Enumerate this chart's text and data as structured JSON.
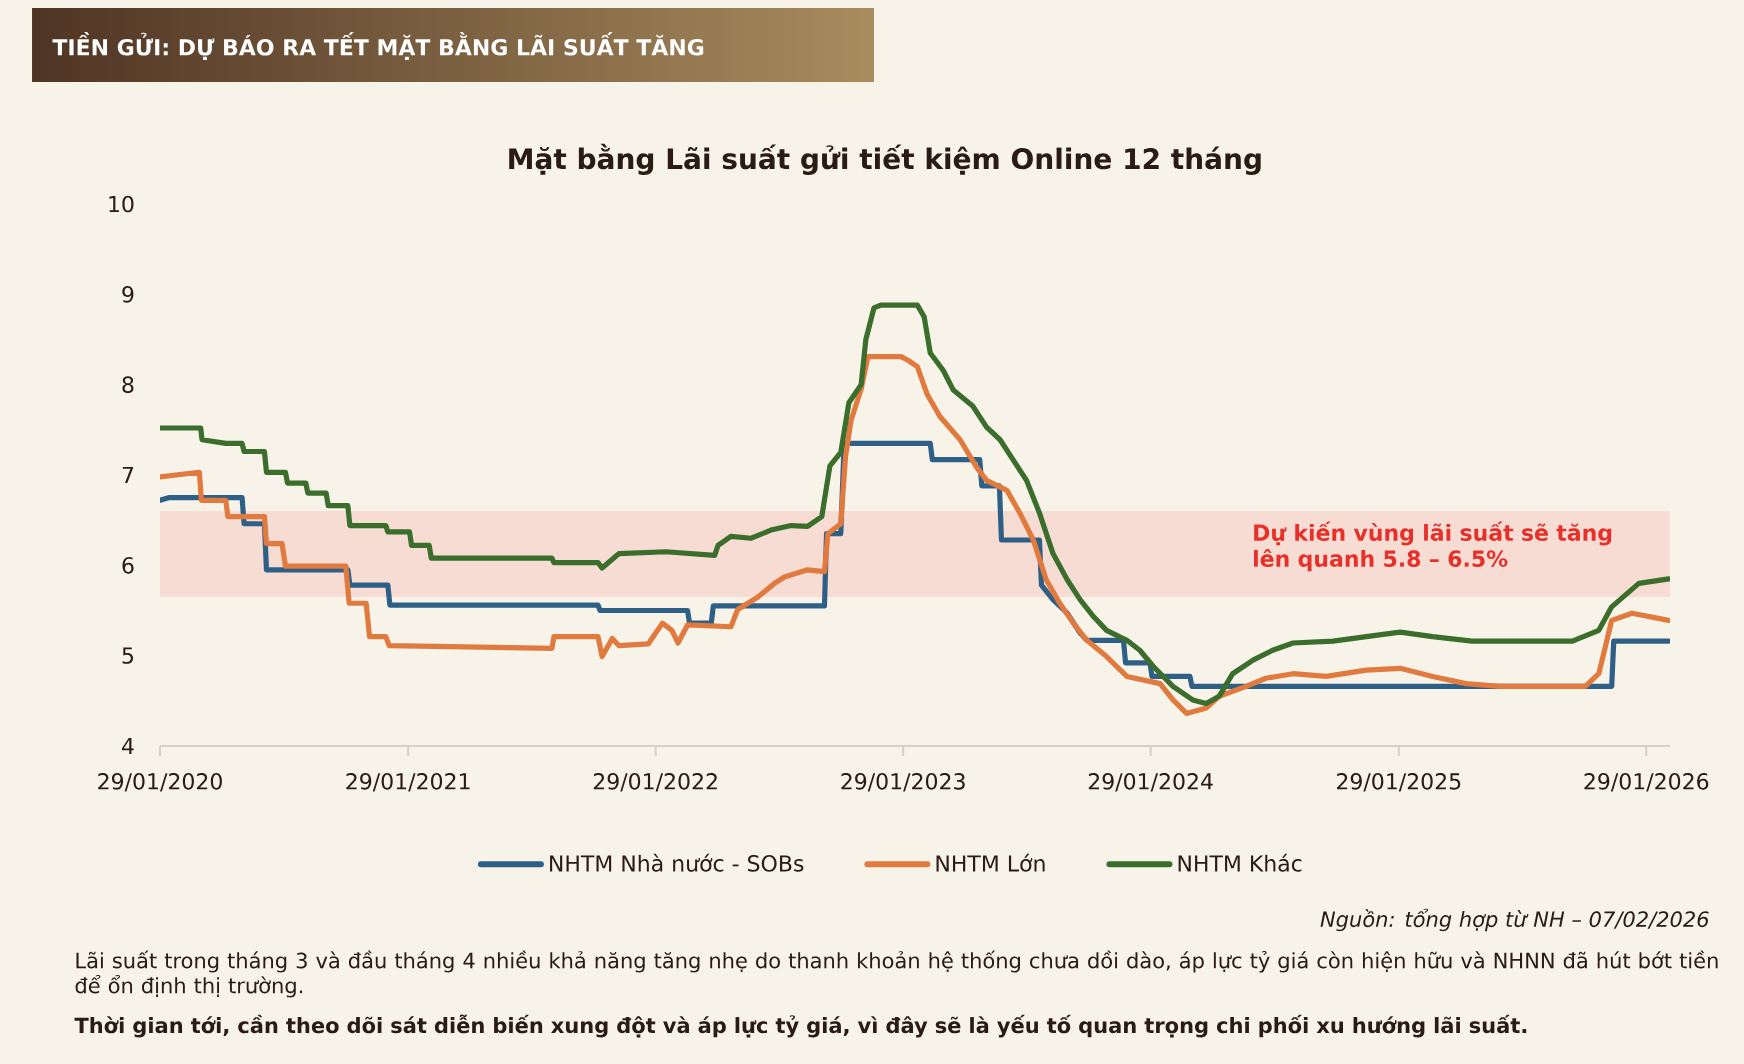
{
  "chart_data": {
    "type": "line",
    "title": "Mặt bằng Lãi suất gửi tiết kiệm Online 12 tháng",
    "annotations": [
      "TIỀN GỬI: DỰ BÁO RA TẾT MẶT BẰNG LÃI SUẤT TĂNG",
      "Nguồn: tổng hợp từ NH – 07/02/2026",
      "Lãi suất trong tháng 3 và đầu tháng 4 nhiều khả năng tăng nhẹ do thanh khoản hệ thống chưa dồi dào, áp lực tỷ giá còn hiện hữu và NHNN đã hút bớt tiền để ổn định thị trường.",
      "Thời gian tới, cần theo dõi sát diễn biến xung đột và áp lực tỷ giá, vì đây sẽ là yếu tố quan trọng chi phối xu hướng lãi suất."
    ],
    "xlim": [
      "2020-01-29",
      "2026-03-05"
    ],
    "xticks": [
      {
        "value": "2020-01-29",
        "label": "29/01/2020"
      },
      {
        "value": "2021-01-29",
        "label": "29/01/2021"
      },
      {
        "value": "2022-01-29",
        "label": "29/01/2022"
      },
      {
        "value": "2023-01-29",
        "label": "29/01/2023"
      },
      {
        "value": "2024-01-29",
        "label": "29/01/2024"
      },
      {
        "value": "2025-01-29",
        "label": "29/01/2025"
      },
      {
        "value": "2026-01-29",
        "label": "29/01/2026"
      }
    ],
    "ylim": [
      4,
      10
    ],
    "yticks": [
      4,
      5,
      6,
      7,
      8,
      9,
      10
    ],
    "bands": [
      {
        "axis": "y",
        "from": 5.65,
        "to": 6.6,
        "label": "Dự kiến vùng lãi suất sẽ tăng lên quanh 5.8 – 6.5%",
        "color": "#f7dcd3"
      }
    ],
    "legend": "bottom",
    "series": [
      {
        "name": "NHTM Nhà nước - SOBs",
        "color": "#2e5f87",
        "x": [
          "2020-01-29",
          "2020-02-12",
          "2020-05-29",
          "2020-06-01",
          "2020-07-01",
          "2020-07-04",
          "2020-11-01",
          "2020-11-04",
          "2020-12-30",
          "2021-01-02",
          "2021-11-05",
          "2021-11-08",
          "2022-03-17",
          "2022-03-20",
          "2022-04-21",
          "2022-04-24",
          "2022-10-05",
          "2022-10-08",
          "2022-10-29",
          "2022-11-03",
          "2023-03-10",
          "2023-03-13",
          "2023-05-22",
          "2023-05-25",
          "2023-06-20",
          "2023-06-23",
          "2023-08-18",
          "2023-08-21",
          "2023-09-07",
          "2023-09-28",
          "2023-10-17",
          "2023-10-27",
          "2023-12-20",
          "2023-12-23",
          "2024-01-28",
          "2024-01-31",
          "2024-03-27",
          "2024-03-30",
          "2025-12-09",
          "2025-12-12",
          "2026-03-03"
        ],
        "values": [
          6.72,
          6.75,
          6.75,
          6.46,
          6.46,
          5.95,
          5.95,
          5.78,
          5.78,
          5.56,
          5.56,
          5.5,
          5.5,
          5.36,
          5.36,
          5.55,
          5.55,
          6.35,
          6.35,
          7.35,
          7.35,
          7.17,
          7.17,
          6.88,
          6.88,
          6.28,
          6.28,
          5.78,
          5.62,
          5.47,
          5.25,
          5.17,
          5.17,
          4.92,
          4.92,
          4.77,
          4.77,
          4.66,
          4.66,
          5.16,
          5.16
        ]
      },
      {
        "name": "NHTM Lớn",
        "color": "#e07a3e",
        "x": [
          "2020-01-29",
          "2020-03-27",
          "2020-03-30",
          "2020-05-05",
          "2020-05-08",
          "2020-07-01",
          "2020-07-04",
          "2020-07-27",
          "2020-08-01",
          "2020-10-29",
          "2020-11-03",
          "2020-11-28",
          "2020-12-03",
          "2020-12-27",
          "2021-01-01",
          "2021-08-29",
          "2021-09-01",
          "2021-11-05",
          "2021-11-11",
          "2021-11-26",
          "2021-12-06",
          "2022-01-18",
          "2022-02-08",
          "2022-02-22",
          "2022-03-03",
          "2022-03-17",
          "2022-05-20",
          "2022-05-30",
          "2022-06-29",
          "2022-07-23",
          "2022-08-07",
          "2022-09-10",
          "2022-10-05",
          "2022-10-10",
          "2022-10-29",
          "2022-11-05",
          "2022-11-13",
          "2022-11-28",
          "2022-12-08",
          "2023-01-26",
          "2023-02-05",
          "2023-02-19",
          "2023-03-05",
          "2023-03-24",
          "2023-04-23",
          "2023-05-17",
          "2023-06-01",
          "2023-07-01",
          "2023-07-20",
          "2023-08-09",
          "2023-08-28",
          "2023-09-17",
          "2023-10-07",
          "2023-10-27",
          "2023-11-25",
          "2023-12-25",
          "2024-02-12",
          "2024-03-02",
          "2024-03-22",
          "2024-04-20",
          "2024-05-09",
          "2024-06-18",
          "2024-07-17",
          "2024-08-26",
          "2024-10-14",
          "2024-12-12",
          "2025-01-31",
          "2025-03-20",
          "2025-05-08",
          "2025-06-26",
          "2025-10-31",
          "2025-11-20",
          "2025-12-09",
          "2026-01-08",
          "2026-03-03"
        ],
        "values": [
          6.98,
          7.03,
          6.72,
          6.72,
          6.54,
          6.54,
          6.24,
          6.24,
          5.99,
          5.99,
          5.58,
          5.58,
          5.21,
          5.21,
          5.11,
          5.08,
          5.21,
          5.21,
          4.99,
          5.19,
          5.11,
          5.13,
          5.36,
          5.28,
          5.14,
          5.34,
          5.32,
          5.51,
          5.65,
          5.8,
          5.87,
          5.95,
          5.93,
          6.35,
          6.46,
          7.2,
          7.6,
          7.95,
          8.31,
          8.31,
          8.27,
          8.2,
          7.9,
          7.65,
          7.39,
          7.09,
          6.94,
          6.83,
          6.58,
          6.28,
          5.84,
          5.58,
          5.36,
          5.17,
          4.99,
          4.77,
          4.69,
          4.51,
          4.36,
          4.42,
          4.55,
          4.66,
          4.75,
          4.8,
          4.77,
          4.84,
          4.86,
          4.77,
          4.69,
          4.66,
          4.66,
          4.8,
          5.39,
          5.47,
          5.39
        ]
      },
      {
        "name": "NHTM Khác",
        "color": "#3b6d2c",
        "x": [
          "2020-01-29",
          "2020-03-29",
          "2020-03-31",
          "2020-05-05",
          "2020-05-29",
          "2020-06-01",
          "2020-07-01",
          "2020-07-04",
          "2020-08-01",
          "2020-08-04",
          "2020-08-31",
          "2020-09-03",
          "2020-09-30",
          "2020-10-03",
          "2020-11-01",
          "2020-11-04",
          "2020-12-27",
          "2020-12-30",
          "2021-01-31",
          "2021-02-03",
          "2021-03-01",
          "2021-03-04",
          "2021-08-29",
          "2021-09-01",
          "2021-11-05",
          "2021-11-11",
          "2021-12-06",
          "2022-02-13",
          "2022-04-26",
          "2022-05-01",
          "2022-05-20",
          "2022-06-19",
          "2022-07-18",
          "2022-08-17",
          "2022-09-10",
          "2022-10-01",
          "2022-10-13",
          "2022-10-29",
          "2022-11-10",
          "2022-11-28",
          "2022-12-05",
          "2022-12-17",
          "2022-12-27",
          "2023-02-19",
          "2023-03-01",
          "2023-03-10",
          "2023-03-29",
          "2023-04-13",
          "2023-05-12",
          "2023-06-01",
          "2023-06-21",
          "2023-07-10",
          "2023-07-30",
          "2023-08-18",
          "2023-09-07",
          "2023-09-28",
          "2023-10-17",
          "2023-11-06",
          "2023-11-25",
          "2023-12-25",
          "2024-01-13",
          "2024-02-02",
          "2024-03-02",
          "2024-03-31",
          "2024-04-20",
          "2024-05-09",
          "2024-05-29",
          "2024-06-28",
          "2024-07-27",
          "2024-08-26",
          "2024-10-24",
          "2024-12-12",
          "2025-01-31",
          "2025-03-20",
          "2025-05-17",
          "2025-10-12",
          "2025-11-20",
          "2025-12-09",
          "2026-01-18",
          "2026-03-03"
        ],
        "values": [
          7.52,
          7.52,
          7.39,
          7.35,
          7.35,
          7.26,
          7.26,
          7.03,
          7.03,
          6.91,
          6.91,
          6.8,
          6.8,
          6.66,
          6.66,
          6.44,
          6.44,
          6.37,
          6.37,
          6.22,
          6.22,
          6.08,
          6.08,
          6.03,
          6.03,
          5.97,
          6.13,
          6.15,
          6.11,
          6.22,
          6.32,
          6.3,
          6.39,
          6.44,
          6.43,
          6.54,
          7.1,
          7.25,
          7.8,
          8.0,
          8.5,
          8.85,
          8.88,
          8.88,
          8.75,
          8.35,
          8.16,
          7.94,
          7.76,
          7.53,
          7.39,
          7.17,
          6.94,
          6.58,
          6.13,
          5.84,
          5.62,
          5.43,
          5.28,
          5.17,
          5.06,
          4.88,
          4.66,
          4.51,
          4.47,
          4.55,
          4.8,
          4.95,
          5.06,
          5.14,
          5.16,
          5.21,
          5.26,
          5.21,
          5.16,
          5.16,
          5.28,
          5.54,
          5.8,
          5.85
        ]
      }
    ]
  }
}
